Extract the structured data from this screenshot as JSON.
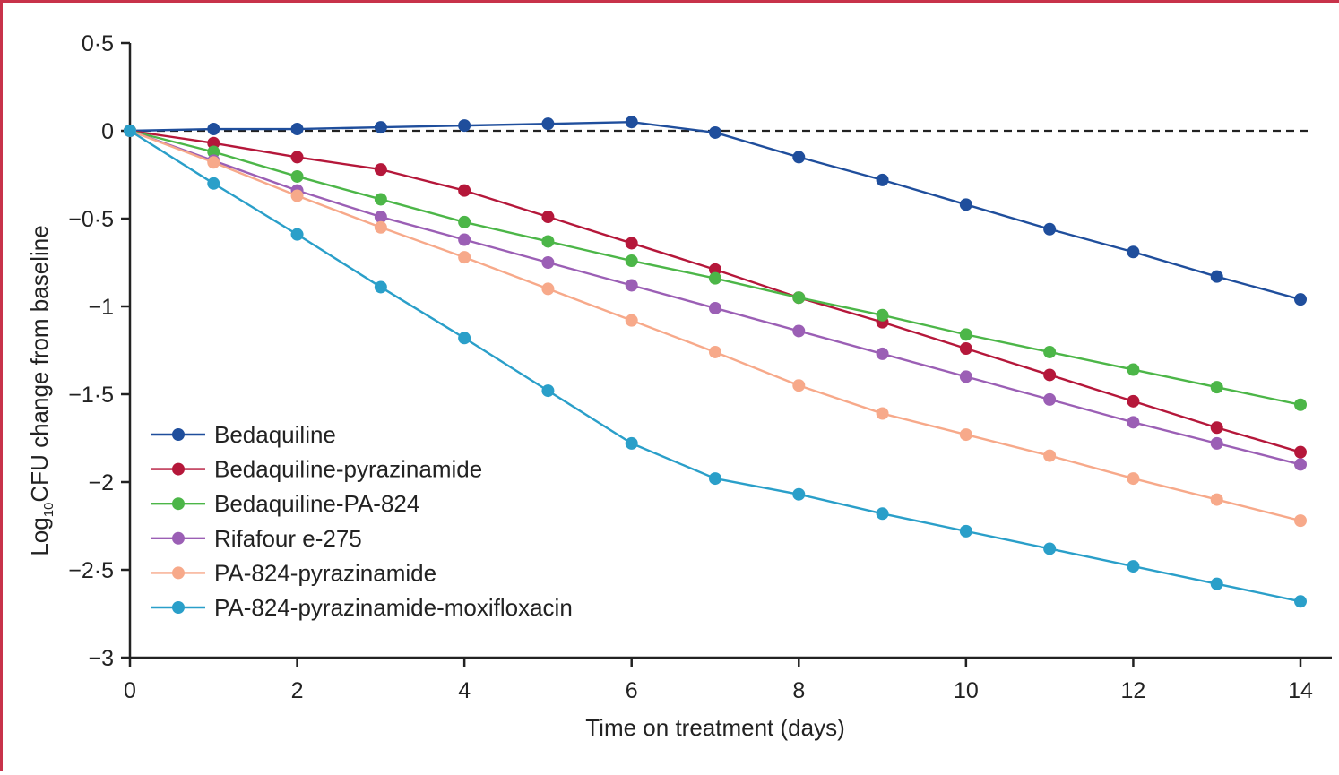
{
  "chart_data": {
    "type": "line",
    "xlabel": "Time on treatment (days)",
    "ylabel": {
      "prefix": "Log",
      "subscript": "10",
      "suffix": "CFU change from baseline"
    },
    "xlim": [
      0,
      14
    ],
    "ylim": [
      -3,
      0.5
    ],
    "x_ticks": [
      0,
      2,
      4,
      6,
      8,
      10,
      12,
      14
    ],
    "x_tick_labels": [
      "0",
      "2",
      "4",
      "6",
      "8",
      "10",
      "12",
      "14"
    ],
    "y_ticks": [
      0.5,
      0,
      -0.5,
      -1,
      -1.5,
      -2,
      -2.5,
      -3
    ],
    "y_tick_labels": [
      "0·5",
      "0",
      "−0·5",
      "−1",
      "−1·5",
      "−2",
      "−2·5",
      "−3"
    ],
    "reference_line": {
      "y": 0,
      "style": "dashed",
      "color": "#222222"
    },
    "grid": false,
    "legend_position": "bottom-left",
    "x": [
      0,
      1,
      2,
      3,
      4,
      5,
      6,
      7,
      8,
      9,
      10,
      11,
      12,
      13,
      14
    ],
    "series": [
      {
        "name": "Bedaquiline",
        "color": "#1f4e9c",
        "values": [
          0,
          0.01,
          0.01,
          0.02,
          0.03,
          0.04,
          0.05,
          -0.01,
          -0.15,
          -0.28,
          -0.42,
          -0.56,
          -0.69,
          -0.83,
          -0.96
        ]
      },
      {
        "name": "Bedaquiline-pyrazinamide",
        "color": "#b5173a",
        "values": [
          0,
          -0.07,
          -0.15,
          -0.22,
          -0.34,
          -0.49,
          -0.64,
          -0.79,
          -0.95,
          -1.09,
          -1.24,
          -1.39,
          -1.54,
          -1.69,
          -1.83
        ]
      },
      {
        "name": "Bedaquiline-PA-824",
        "color": "#4cb648",
        "values": [
          0,
          -0.12,
          -0.26,
          -0.39,
          -0.52,
          -0.63,
          -0.74,
          -0.84,
          -0.95,
          -1.05,
          -1.16,
          -1.26,
          -1.36,
          -1.46,
          -1.56
        ]
      },
      {
        "name": "Rifafour e-275",
        "color": "#9b5fb5",
        "values": [
          0,
          -0.17,
          -0.34,
          -0.49,
          -0.62,
          -0.75,
          -0.88,
          -1.01,
          -1.14,
          -1.27,
          -1.4,
          -1.53,
          -1.66,
          -1.78,
          -1.9
        ]
      },
      {
        "name": "PA-824-pyrazinamide",
        "color": "#f7a98a",
        "values": [
          0,
          -0.18,
          -0.37,
          -0.55,
          -0.72,
          -0.9,
          -1.08,
          -1.26,
          -1.45,
          -1.61,
          -1.73,
          -1.85,
          -1.98,
          -2.1,
          -2.22
        ]
      },
      {
        "name": "PA-824-pyrazinamide-moxifloxacin",
        "color": "#2a9fc9",
        "values": [
          0,
          -0.3,
          -0.59,
          -0.89,
          -1.18,
          -1.48,
          -1.78,
          -1.98,
          -2.07,
          -2.18,
          -2.28,
          -2.38,
          -2.48,
          -2.58,
          -2.68
        ]
      }
    ]
  }
}
